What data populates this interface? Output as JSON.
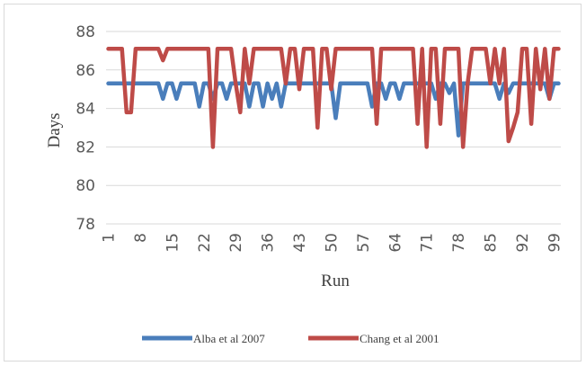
{
  "chart_data": {
    "type": "line",
    "title": "",
    "xlabel": "Run",
    "ylabel": "Days",
    "ylim": [
      78,
      88
    ],
    "yticks": [
      78,
      80,
      82,
      84,
      86,
      88
    ],
    "xlim": [
      1,
      100
    ],
    "xticks": [
      1,
      8,
      15,
      22,
      29,
      36,
      43,
      50,
      57,
      64,
      71,
      78,
      85,
      92,
      99
    ],
    "grid": "horizontal",
    "legend_position": "bottom",
    "series": [
      {
        "name": "Alba et al 2007",
        "color": "#4a7ebb",
        "values": [
          85.3,
          85.3,
          85.3,
          85.3,
          85.3,
          85.3,
          85.3,
          85.3,
          85.3,
          85.3,
          85.3,
          85.3,
          84.5,
          85.3,
          85.3,
          84.5,
          85.3,
          85.3,
          85.3,
          85.3,
          84.1,
          85.3,
          85.3,
          84.5,
          85.3,
          85.3,
          84.5,
          85.3,
          85.3,
          85.3,
          85.3,
          84.1,
          85.3,
          85.3,
          84.1,
          85.3,
          84.5,
          85.3,
          84.1,
          85.3,
          85.3,
          85.3,
          85.3,
          85.3,
          85.3,
          85.3,
          85.3,
          85.3,
          85.3,
          85.3,
          83.5,
          85.3,
          85.3,
          85.3,
          85.3,
          85.3,
          85.3,
          85.3,
          84.1,
          85.3,
          85.3,
          84.5,
          85.3,
          85.3,
          84.5,
          85.3,
          85.3,
          85.3,
          85.3,
          85.3,
          85.3,
          85.3,
          84.5,
          85.3,
          85.3,
          84.8,
          85.3,
          82.6,
          85.3,
          85.3,
          85.3,
          85.3,
          85.3,
          85.3,
          85.3,
          85.3,
          84.5,
          85.3,
          84.8,
          85.3,
          85.3,
          85.3,
          85.3,
          85.3,
          85.3,
          85.3,
          85.3,
          84.5,
          85.3,
          85.3
        ]
      },
      {
        "name": "Chang et al 2001",
        "color": "#be4b48",
        "values": [
          87.1,
          87.1,
          87.1,
          87.1,
          83.8,
          83.8,
          87.1,
          87.1,
          87.1,
          87.1,
          87.1,
          87.1,
          86.5,
          87.1,
          87.1,
          87.1,
          87.1,
          87.1,
          87.1,
          87.1,
          87.1,
          87.1,
          87.1,
          82.0,
          87.1,
          87.1,
          87.1,
          87.1,
          85.3,
          83.8,
          87.1,
          85.3,
          87.1,
          87.1,
          87.1,
          87.1,
          87.1,
          87.1,
          87.1,
          85.3,
          87.1,
          87.1,
          85.0,
          87.1,
          87.1,
          87.1,
          83.0,
          87.1,
          87.1,
          85.0,
          87.1,
          87.1,
          87.1,
          87.1,
          87.1,
          87.1,
          87.1,
          87.1,
          87.1,
          83.2,
          87.1,
          87.1,
          87.1,
          87.1,
          87.1,
          87.1,
          87.1,
          87.1,
          83.2,
          87.1,
          82.0,
          87.1,
          87.1,
          83.2,
          87.1,
          87.1,
          87.1,
          87.1,
          82.0,
          85.3,
          87.1,
          87.1,
          87.1,
          87.1,
          85.3,
          87.1,
          85.3,
          87.1,
          82.3,
          83.0,
          83.8,
          87.1,
          87.1,
          83.2,
          87.1,
          85.0,
          87.1,
          84.5,
          87.1,
          87.1
        ]
      }
    ]
  }
}
